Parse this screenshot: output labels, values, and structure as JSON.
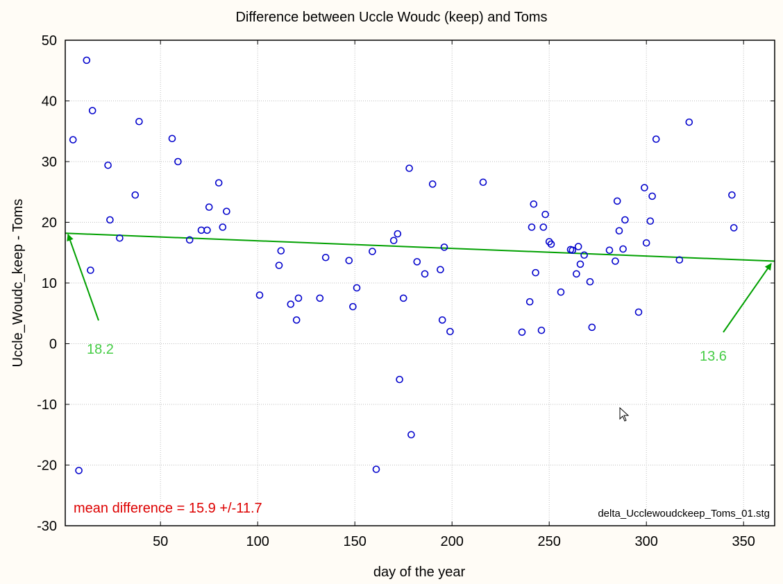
{
  "chart_data": {
    "type": "scatter",
    "title": "Difference between Uccle Woudc (keep) and Toms",
    "xlabel": "day of the year",
    "ylabel": "Uccle_Woudc_keep - Toms",
    "xlim": [
      1,
      366
    ],
    "ylim": [
      -30,
      50
    ],
    "x_ticks": [
      50,
      100,
      150,
      200,
      250,
      300,
      350
    ],
    "y_ticks": [
      -30,
      -20,
      -10,
      0,
      10,
      20,
      30,
      40,
      50
    ],
    "grid": true,
    "marker_color": "#0000cc",
    "points": [
      [
        5,
        33.6
      ],
      [
        8,
        -20.9
      ],
      [
        12,
        46.7
      ],
      [
        14,
        12.1
      ],
      [
        15,
        38.4
      ],
      [
        23,
        29.4
      ],
      [
        24,
        20.4
      ],
      [
        29,
        17.4
      ],
      [
        37,
        24.5
      ],
      [
        39,
        36.6
      ],
      [
        56,
        33.8
      ],
      [
        59,
        30.0
      ],
      [
        65,
        17.1
      ],
      [
        71,
        18.7
      ],
      [
        74,
        18.7
      ],
      [
        75,
        22.5
      ],
      [
        80,
        26.5
      ],
      [
        82,
        19.2
      ],
      [
        84,
        21.8
      ],
      [
        101,
        8.0
      ],
      [
        111,
        12.9
      ],
      [
        112,
        15.3
      ],
      [
        117,
        6.5
      ],
      [
        120,
        3.9
      ],
      [
        121,
        7.5
      ],
      [
        132,
        7.5
      ],
      [
        135,
        14.2
      ],
      [
        147,
        13.7
      ],
      [
        149,
        6.1
      ],
      [
        151,
        9.2
      ],
      [
        159,
        15.2
      ],
      [
        161,
        -20.7
      ],
      [
        170,
        17.0
      ],
      [
        172,
        18.1
      ],
      [
        173,
        -5.9
      ],
      [
        175,
        7.5
      ],
      [
        178,
        28.9
      ],
      [
        179,
        -15.0
      ],
      [
        182,
        13.5
      ],
      [
        186,
        11.5
      ],
      [
        190,
        26.3
      ],
      [
        194,
        12.2
      ],
      [
        195,
        3.9
      ],
      [
        196,
        15.9
      ],
      [
        199,
        2.0
      ],
      [
        216,
        26.6
      ],
      [
        236,
        1.9
      ],
      [
        240,
        6.9
      ],
      [
        241,
        19.2
      ],
      [
        242,
        23.0
      ],
      [
        243,
        11.7
      ],
      [
        246,
        2.2
      ],
      [
        247,
        19.2
      ],
      [
        248,
        21.3
      ],
      [
        250,
        16.8
      ],
      [
        251,
        16.4
      ],
      [
        256,
        8.5
      ],
      [
        261,
        15.5
      ],
      [
        262,
        15.4
      ],
      [
        264,
        11.5
      ],
      [
        265,
        16.0
      ],
      [
        266,
        13.1
      ],
      [
        268,
        14.6
      ],
      [
        271,
        10.2
      ],
      [
        272,
        2.7
      ],
      [
        281,
        15.4
      ],
      [
        284,
        13.6
      ],
      [
        285,
        23.5
      ],
      [
        286,
        18.6
      ],
      [
        288,
        15.6
      ],
      [
        289,
        20.4
      ],
      [
        296,
        5.2
      ],
      [
        299,
        25.7
      ],
      [
        300,
        16.6
      ],
      [
        302,
        20.2
      ],
      [
        303,
        24.3
      ],
      [
        305,
        33.7
      ],
      [
        317,
        13.8
      ],
      [
        322,
        36.5
      ],
      [
        344,
        24.5
      ],
      [
        345,
        19.1
      ]
    ],
    "trend_line": {
      "color": "#00a000",
      "from": [
        1,
        18.2
      ],
      "to": [
        366,
        13.6
      ]
    },
    "annotations": [
      {
        "text": "18.2",
        "color": "#44cc44"
      },
      {
        "text": "13.6",
        "color": "#44cc44"
      },
      {
        "text": "mean difference = 15.9 +/-11.7",
        "color": "#dd0000"
      },
      {
        "text": "delta_Ucclewoudckeep_Toms_01.stg",
        "color": "#000000"
      }
    ]
  }
}
